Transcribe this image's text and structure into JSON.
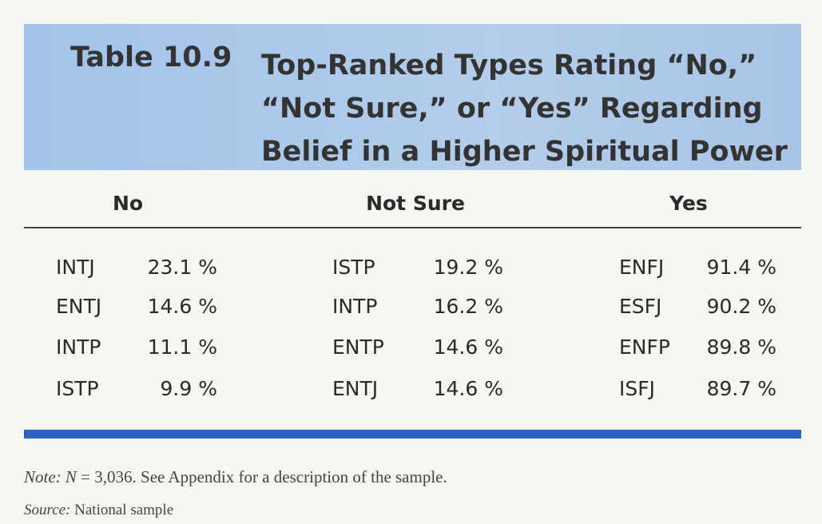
{
  "table_label": "Table 10.9",
  "title_lines": [
    "Top-Ranked Types Rating “No,”",
    "“Not Sure,” or “Yes” Regarding",
    "Belief in a Higher Spiritual Power"
  ],
  "table": {
    "headers": [
      "No",
      "Not Sure",
      "Yes"
    ],
    "rows": [
      [
        [
          "INTJ",
          "23.1 %"
        ],
        [
          "ISTP",
          "19.2 %"
        ],
        [
          "ENFJ",
          "91.4 %"
        ]
      ],
      [
        [
          "ENTJ",
          "14.6 %"
        ],
        [
          "INTP",
          "16.2 %"
        ],
        [
          "ESFJ",
          "90.2 %"
        ]
      ],
      [
        [
          "INTP",
          "11.1 %"
        ],
        [
          "ENTP",
          "14.6 %"
        ],
        [
          "ENFP",
          "89.8 %"
        ]
      ],
      [
        [
          "ISTP",
          "9.9 %"
        ],
        [
          "ENTJ",
          "14.6 %"
        ],
        [
          "ISFJ",
          "89.7 %"
        ]
      ]
    ]
  },
  "note": {
    "label": "Note:",
    "variable": "N",
    "text": "= 3,036. See Appendix for a description of the sample."
  },
  "source": {
    "label": "Source:",
    "text": "National sample"
  }
}
